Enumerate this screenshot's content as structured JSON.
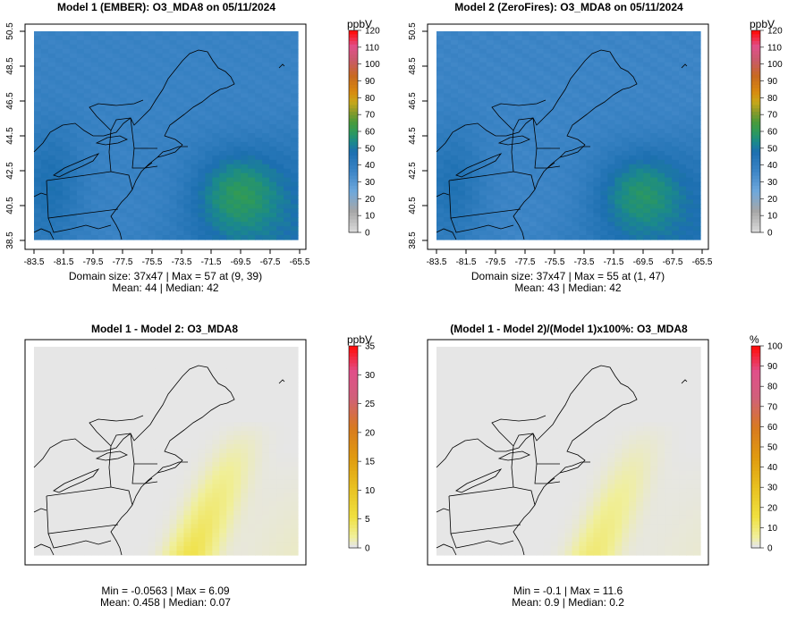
{
  "colors": {
    "frame": "#000000",
    "land": "#1f8a7a"
  },
  "chart_data": [
    {
      "type": "heatmap",
      "title": "Model 1 (EMBER): O3_MDA8 on 05/11/2024",
      "unit": "ppbV",
      "xticks": [
        "-83.5",
        "-81.5",
        "-79.5",
        "-77.5",
        "-75.5",
        "-73.5",
        "-71.5",
        "-69.5",
        "-67.5",
        "-65.5"
      ],
      "yticks": [
        "38.5",
        "40.5",
        "42.5",
        "44.5",
        "46.5",
        "48.5",
        "50.5"
      ],
      "xlim": [
        -84,
        -65
      ],
      "ylim": [
        38.3,
        50.7
      ],
      "colorbar_ticks": [
        "0",
        "10",
        "20",
        "30",
        "40",
        "50",
        "60",
        "70",
        "80",
        "90",
        "100",
        "110",
        "120"
      ],
      "colorbar_range": [
        0,
        120
      ],
      "palette": "ozone",
      "stats_line1": "Domain size: 37x47 | Max = 57 at (9, 39)",
      "stats_line2": "Mean: 44 |  Median: 42",
      "typical_value": 44,
      "max_value": 57
    },
    {
      "type": "heatmap",
      "title": "Model 2 (ZeroFires): O3_MDA8 on 05/11/2024",
      "unit": "ppbV",
      "xticks": [
        "-83.5",
        "-81.5",
        "-79.5",
        "-77.5",
        "-75.5",
        "-73.5",
        "-71.5",
        "-69.5",
        "-67.5",
        "-65.5"
      ],
      "yticks": [
        "38.5",
        "40.5",
        "42.5",
        "44.5",
        "46.5",
        "48.5",
        "50.5"
      ],
      "xlim": [
        -84,
        -65
      ],
      "ylim": [
        38.3,
        50.7
      ],
      "colorbar_ticks": [
        "0",
        "10",
        "20",
        "30",
        "40",
        "50",
        "60",
        "70",
        "80",
        "90",
        "100",
        "110",
        "120"
      ],
      "colorbar_range": [
        0,
        120
      ],
      "palette": "ozone",
      "stats_line1": "Domain size: 37x47 | Max = 55 at (1, 47)",
      "stats_line2": "Mean: 43 |  Median: 42",
      "typical_value": 43,
      "max_value": 55
    },
    {
      "type": "heatmap",
      "title": "Model 1 - Model 2: O3_MDA8",
      "unit": "ppbV",
      "xticks": [],
      "yticks": [],
      "colorbar_ticks": [
        "0",
        "5",
        "10",
        "15",
        "20",
        "25",
        "30",
        "35"
      ],
      "colorbar_range": [
        0,
        35
      ],
      "palette": "diff",
      "stats_line1": "Min = -0.0563 | Max = 6.09",
      "stats_line2": "Mean: 0.458 |  Median: 0.07",
      "min_value": -0.0563,
      "max_value": 6.09
    },
    {
      "type": "heatmap",
      "title": "(Model 1 - Model 2)/(Model 1)x100%: O3_MDA8",
      "unit": "%",
      "xticks": [],
      "yticks": [],
      "colorbar_ticks": [
        "0",
        "10",
        "20",
        "30",
        "40",
        "50",
        "60",
        "70",
        "80",
        "90",
        "100"
      ],
      "colorbar_range": [
        0,
        100
      ],
      "palette": "diff",
      "stats_line1": "Min = -0.1 | Max = 11.6",
      "stats_line2": "Mean: 0.9 |  Median: 0.2",
      "min_value": -0.1,
      "max_value": 11.6
    }
  ]
}
